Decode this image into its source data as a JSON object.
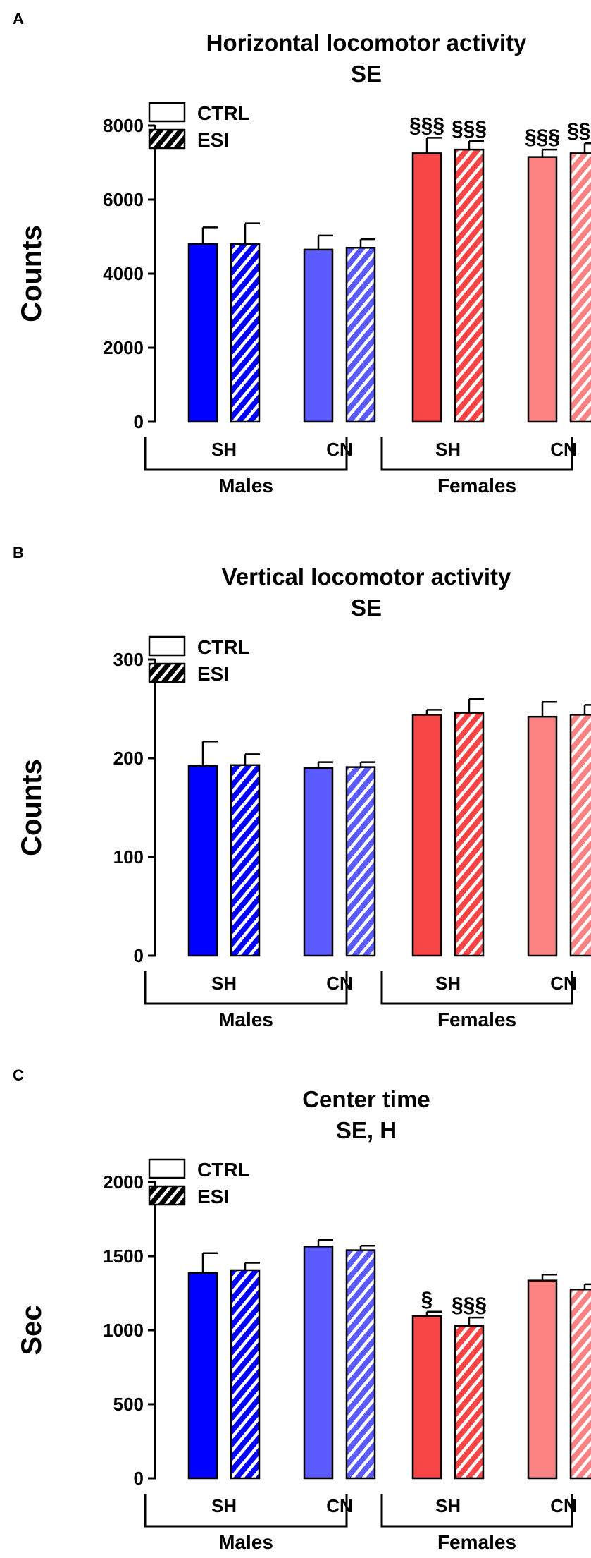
{
  "colors": {
    "male_sh": "#0000ff",
    "male_cn": "#5a5aff",
    "female_sh": "#f74444",
    "female_cn": "#fa8282",
    "axis": "#000000"
  },
  "legend": [
    {
      "label": "CTRL",
      "pattern": "solid"
    },
    {
      "label": "ESI",
      "pattern": "hatched"
    }
  ],
  "chart_data": [
    {
      "panel": "A",
      "type": "bar",
      "title": "Horizontal locomotor activity",
      "subtitle": "SE",
      "ylabel": "Counts",
      "ylim": [
        0,
        8000
      ],
      "yticks": [
        0,
        2000,
        4000,
        6000,
        8000
      ],
      "groups": [
        {
          "sex": "Males",
          "housing": "SH",
          "ctrl": 4800,
          "ctrl_err": 450,
          "esi": 4800,
          "esi_err": 560,
          "ctrl_sig": "",
          "esi_sig": ""
        },
        {
          "sex": "Males",
          "housing": "CN",
          "ctrl": 4650,
          "ctrl_err": 380,
          "esi": 4700,
          "esi_err": 230,
          "ctrl_sig": "",
          "esi_sig": ""
        },
        {
          "sex": "Females",
          "housing": "SH",
          "ctrl": 7250,
          "ctrl_err": 420,
          "esi": 7350,
          "esi_err": 230,
          "ctrl_sig": "§§§",
          "esi_sig": "§§§"
        },
        {
          "sex": "Females",
          "housing": "CN",
          "ctrl": 7150,
          "ctrl_err": 200,
          "esi": 7250,
          "esi_err": 270,
          "ctrl_sig": "§§§",
          "esi_sig": "§§§"
        }
      ],
      "sexes": [
        "Males",
        "Females"
      ]
    },
    {
      "panel": "B",
      "type": "bar",
      "title": "Vertical locomotor activity",
      "subtitle": "SE",
      "ylabel": "Counts",
      "ylim": [
        0,
        300
      ],
      "yticks": [
        0,
        100,
        200,
        300
      ],
      "groups": [
        {
          "sex": "Males",
          "housing": "SH",
          "ctrl": 192,
          "ctrl_err": 25,
          "esi": 193,
          "esi_err": 11,
          "ctrl_sig": "",
          "esi_sig": ""
        },
        {
          "sex": "Males",
          "housing": "CN",
          "ctrl": 190,
          "ctrl_err": 6,
          "esi": 191,
          "esi_err": 5,
          "ctrl_sig": "",
          "esi_sig": ""
        },
        {
          "sex": "Females",
          "housing": "SH",
          "ctrl": 244,
          "ctrl_err": 5,
          "esi": 246,
          "esi_err": 14,
          "ctrl_sig": "",
          "esi_sig": ""
        },
        {
          "sex": "Females",
          "housing": "CN",
          "ctrl": 242,
          "ctrl_err": 15,
          "esi": 244,
          "esi_err": 10,
          "ctrl_sig": "",
          "esi_sig": ""
        }
      ],
      "sexes": [
        "Males",
        "Females"
      ]
    },
    {
      "panel": "C",
      "type": "bar",
      "title": "Center time",
      "subtitle": "SE, H",
      "ylabel": "Sec",
      "ylim": [
        0,
        2000
      ],
      "yticks": [
        0,
        500,
        1000,
        1500,
        2000
      ],
      "groups": [
        {
          "sex": "Males",
          "housing": "SH",
          "ctrl": 1385,
          "ctrl_err": 135,
          "esi": 1405,
          "esi_err": 50,
          "ctrl_sig": "",
          "esi_sig": ""
        },
        {
          "sex": "Males",
          "housing": "CN",
          "ctrl": 1565,
          "ctrl_err": 45,
          "esi": 1540,
          "esi_err": 30,
          "ctrl_sig": "",
          "esi_sig": ""
        },
        {
          "sex": "Females",
          "housing": "SH",
          "ctrl": 1095,
          "ctrl_err": 30,
          "esi": 1030,
          "esi_err": 55,
          "ctrl_sig": "§",
          "esi_sig": "§§§"
        },
        {
          "sex": "Females",
          "housing": "CN",
          "ctrl": 1335,
          "ctrl_err": 40,
          "esi": 1275,
          "esi_err": 35,
          "ctrl_sig": "",
          "esi_sig": ""
        }
      ],
      "sexes": [
        "Males",
        "Females"
      ]
    }
  ]
}
